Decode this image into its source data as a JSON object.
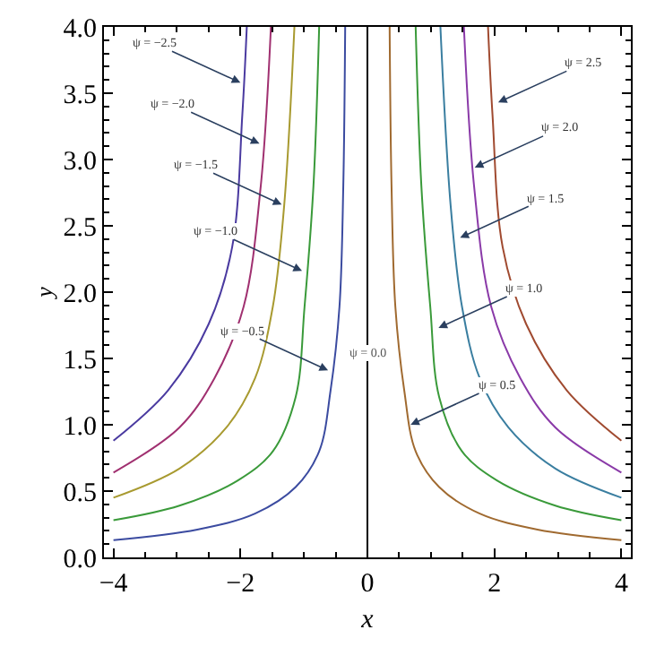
{
  "chart_data": {
    "type": "line",
    "xlabel": "x",
    "ylabel": "y",
    "xlim": [
      -4.15,
      4.15
    ],
    "ylim": [
      0,
      4
    ],
    "xticks": [
      {
        "value": -4,
        "label": "−4"
      },
      {
        "value": -2,
        "label": "−2"
      },
      0,
      2,
      4
    ],
    "yticks": [
      {
        "value": 0,
        "label": "0.0"
      },
      {
        "value": 0.5,
        "label": "0.5"
      },
      {
        "value": 1,
        "label": "1.0"
      },
      {
        "value": 1.5,
        "label": "1.5"
      },
      {
        "value": 2,
        "label": "2.0"
      },
      {
        "value": 2.5,
        "label": "2.5"
      },
      {
        "value": 3,
        "label": "3.0"
      },
      {
        "value": 3.5,
        "label": "3.5"
      },
      {
        "value": 4,
        "label": "4.0"
      }
    ],
    "marker": "none",
    "line_style": "solid",
    "series": [
      {
        "color": "#3b4ba0",
        "x": [
          -4,
          -2.68,
          -1.77,
          -1.13,
          -0.76,
          -0.58,
          -0.44,
          -0.38,
          -0.35
        ],
        "values": [
          0.13,
          0.21,
          0.33,
          0.53,
          0.8,
          1.26,
          1.89,
          2.8,
          4.0
        ]
      },
      {
        "color": "#3a9a3a",
        "x": [
          -4,
          -2.96,
          -2.04,
          -1.49,
          -1.13,
          -0.99,
          -0.85,
          -0.76
        ],
        "values": [
          0.28,
          0.39,
          0.58,
          0.8,
          1.21,
          1.89,
          2.8,
          4.0
        ]
      },
      {
        "color": "#a89a30",
        "x": [
          -4,
          -2.96,
          -2.22,
          -1.77,
          -1.49,
          -1.31,
          -1.15
        ],
        "values": [
          0.45,
          0.67,
          0.98,
          1.35,
          1.89,
          2.66,
          4.0
        ]
      },
      {
        "color": "#a03070",
        "x": [
          -4,
          -2.96,
          -2.41,
          -1.95,
          -1.68,
          -1.52
        ],
        "values": [
          0.64,
          0.98,
          1.35,
          1.89,
          2.8,
          4.0
        ]
      },
      {
        "color": "#4a3aa0",
        "x": [
          -4,
          -3.14,
          -2.5,
          -2.13,
          -1.97,
          -1.9
        ],
        "values": [
          0.88,
          1.26,
          1.76,
          2.34,
          3.34,
          4.0
        ]
      },
      {
        "color": "#a06a30",
        "x": [
          4,
          2.68,
          1.77,
          1.13,
          0.76,
          0.58,
          0.44,
          0.38,
          0.35
        ],
        "values": [
          0.13,
          0.21,
          0.33,
          0.53,
          0.8,
          1.26,
          1.89,
          2.8,
          4.0
        ]
      },
      {
        "color": "#3a9a3a",
        "x": [
          4,
          2.96,
          2.04,
          1.49,
          1.13,
          0.99,
          0.85,
          0.76
        ],
        "values": [
          0.28,
          0.39,
          0.58,
          0.8,
          1.21,
          1.89,
          2.8,
          4.0
        ]
      },
      {
        "color": "#3a7ea0",
        "x": [
          4,
          2.96,
          2.22,
          1.77,
          1.49,
          1.31,
          1.15
        ],
        "values": [
          0.45,
          0.67,
          0.98,
          1.35,
          1.89,
          2.66,
          4.0
        ]
      },
      {
        "color": "#8a3aa8",
        "x": [
          4,
          2.96,
          2.41,
          1.95,
          1.68,
          1.52
        ],
        "values": [
          0.64,
          0.98,
          1.35,
          1.89,
          2.8,
          4.0
        ]
      },
      {
        "color": "#a04a30",
        "x": [
          4,
          3.14,
          2.5,
          2.13,
          1.97,
          1.9
        ],
        "values": [
          0.88,
          1.26,
          1.76,
          2.34,
          3.34,
          4.0
        ]
      }
    ],
    "ref_lines": [
      {
        "axis": "x",
        "value": 0,
        "label": "ψ = 0.0",
        "color": "#000000"
      }
    ],
    "annotations": [
      {
        "text": "ψ = −2.5",
        "x": -2.0,
        "y": 3.58
      },
      {
        "text": "ψ = −2.0",
        "x": -1.7,
        "y": 3.12
      },
      {
        "text": "ψ = −1.5",
        "x": -1.35,
        "y": 2.66
      },
      {
        "text": "ψ = −1.0",
        "x": -1.03,
        "y": 2.16
      },
      {
        "text": "ψ = −0.5",
        "x": -0.62,
        "y": 1.41
      },
      {
        "text": "ψ = 2.5",
        "x": 2.06,
        "y": 3.43
      },
      {
        "text": "ψ = 2.0",
        "x": 1.69,
        "y": 2.94
      },
      {
        "text": "ψ = 1.5",
        "x": 1.46,
        "y": 2.41
      },
      {
        "text": "ψ = 1.0",
        "x": 1.12,
        "y": 1.73
      },
      {
        "text": "ψ = 0.5",
        "x": 0.68,
        "y": 1.0
      }
    ]
  }
}
